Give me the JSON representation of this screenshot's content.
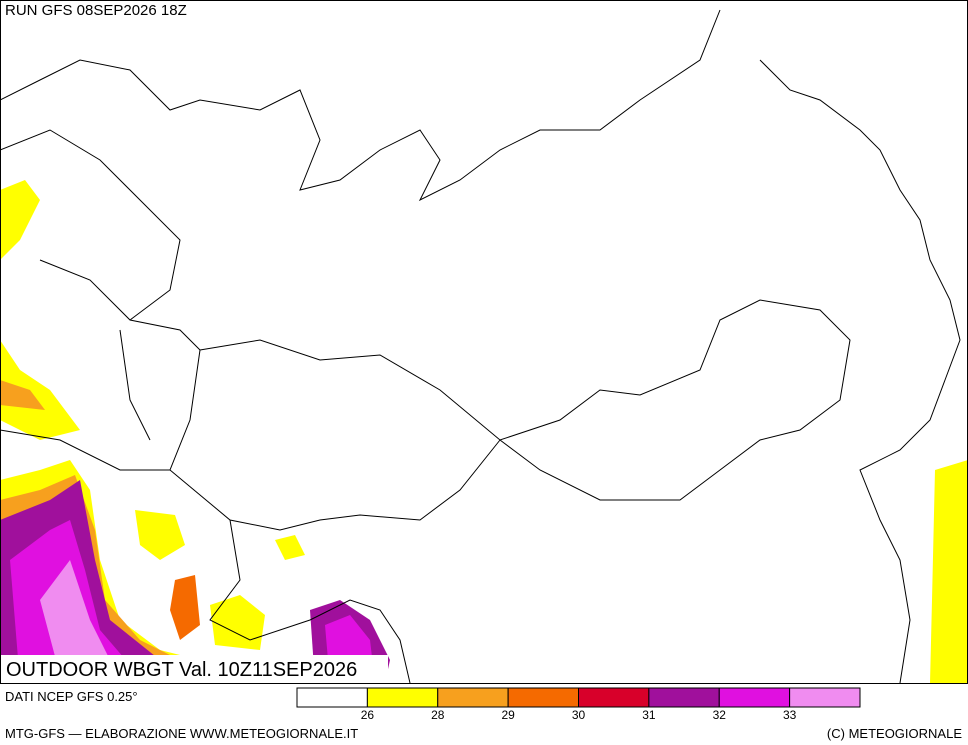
{
  "header": {
    "run": "RUN GFS 08SEP2026 18Z"
  },
  "map": {
    "title": "OUTDOOR WBGT Val. 10Z11SEP2026"
  },
  "legend": {
    "source": "DATI NCEP GFS 0.25°",
    "colors": [
      "#ffffff",
      "#ffff00",
      "#f7a01e",
      "#f56a00",
      "#d8002a",
      "#a0109c",
      "#e010e0",
      "#f08cf0"
    ],
    "labels": [
      "26",
      "28",
      "29",
      "30",
      "31",
      "32",
      "33"
    ]
  },
  "footer": {
    "left": "MTG-GFS — ELABORAZIONE WWW.METEOGIORNALE.IT",
    "right": "(C) METEOGIORNALE"
  }
}
